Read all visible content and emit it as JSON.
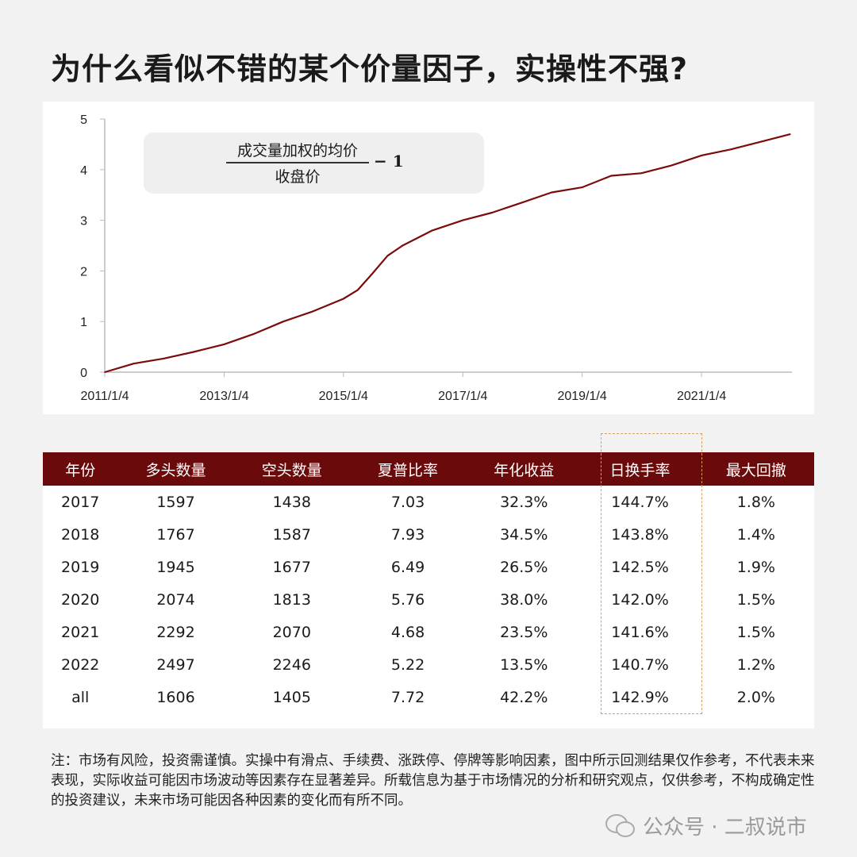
{
  "title": "为什么看似不错的某个价量因子，实操性不强?",
  "formula": {
    "numerator": "成交量加权的均价",
    "denominator": "收盘价",
    "suffix": "− 1"
  },
  "chart_data": {
    "type": "line",
    "title": "",
    "xlabel": "",
    "ylabel": "",
    "ylim": [
      0,
      5
    ],
    "yticks": [
      0,
      1,
      2,
      3,
      4,
      5
    ],
    "xticks": [
      "2011/1/4",
      "2013/1/4",
      "2015/1/4",
      "2017/1/4",
      "2019/1/4",
      "2021/1/4"
    ],
    "line_color": "#7a0c0c",
    "grid": false,
    "series": [
      {
        "x": [
          "2011-01-04",
          "2011-07-01",
          "2012-01-01",
          "2012-07-01",
          "2013-01-04",
          "2013-07-01",
          "2014-01-01",
          "2014-07-01",
          "2015-01-04",
          "2015-04-01",
          "2015-07-01",
          "2015-10-01",
          "2016-01-01",
          "2016-07-01",
          "2017-01-04",
          "2017-07-01",
          "2018-01-01",
          "2018-07-01",
          "2019-01-04",
          "2019-07-01",
          "2020-01-01",
          "2020-07-01",
          "2021-01-04",
          "2021-07-01",
          "2022-01-01",
          "2022-07-01"
        ],
        "values": [
          0,
          0.17,
          0.27,
          0.4,
          0.55,
          0.75,
          1.0,
          1.2,
          1.45,
          1.62,
          1.95,
          2.3,
          2.5,
          2.8,
          3.0,
          3.15,
          3.35,
          3.55,
          3.65,
          3.88,
          3.93,
          4.08,
          4.28,
          4.4,
          4.55,
          4.7
        ]
      }
    ]
  },
  "table": {
    "headers": [
      "年份",
      "多头数量",
      "空头数量",
      "夏普比率",
      "年化收益",
      "日换手率",
      "最大回撤"
    ],
    "rows": [
      [
        "2017",
        "1597",
        "1438",
        "7.03",
        "32.3%",
        "144.7%",
        "1.8%"
      ],
      [
        "2018",
        "1767",
        "1587",
        "7.93",
        "34.5%",
        "143.8%",
        "1.4%"
      ],
      [
        "2019",
        "1945",
        "1677",
        "6.49",
        "26.5%",
        "142.5%",
        "1.9%"
      ],
      [
        "2020",
        "2074",
        "1813",
        "5.76",
        "38.0%",
        "142.0%",
        "1.5%"
      ],
      [
        "2021",
        "2292",
        "2070",
        "4.68",
        "23.5%",
        "141.6%",
        "1.5%"
      ],
      [
        "2022",
        "2497",
        "2246",
        "5.22",
        "13.5%",
        "140.7%",
        "1.2%"
      ],
      [
        "all",
        "1606",
        "1405",
        "7.72",
        "42.2%",
        "142.9%",
        "2.0%"
      ]
    ],
    "header_color": "#6b0a0a",
    "highlight_color": "#d9a066"
  },
  "note": "注：市场有风险，投资需谨慎。实操中有滑点、手续费、涨跌停、停牌等影响因素，图中所示回测结果仅作参考，不代表未来表现，实际收益可能因市场波动等因素存在显著差异。所载信息为基于市场情况的分析和研究观点，仅供参考，不构成确定性的投资建议，未来市场可能因各种因素的变化而有所不同。",
  "watermark": "公众号 · 二叔说市"
}
